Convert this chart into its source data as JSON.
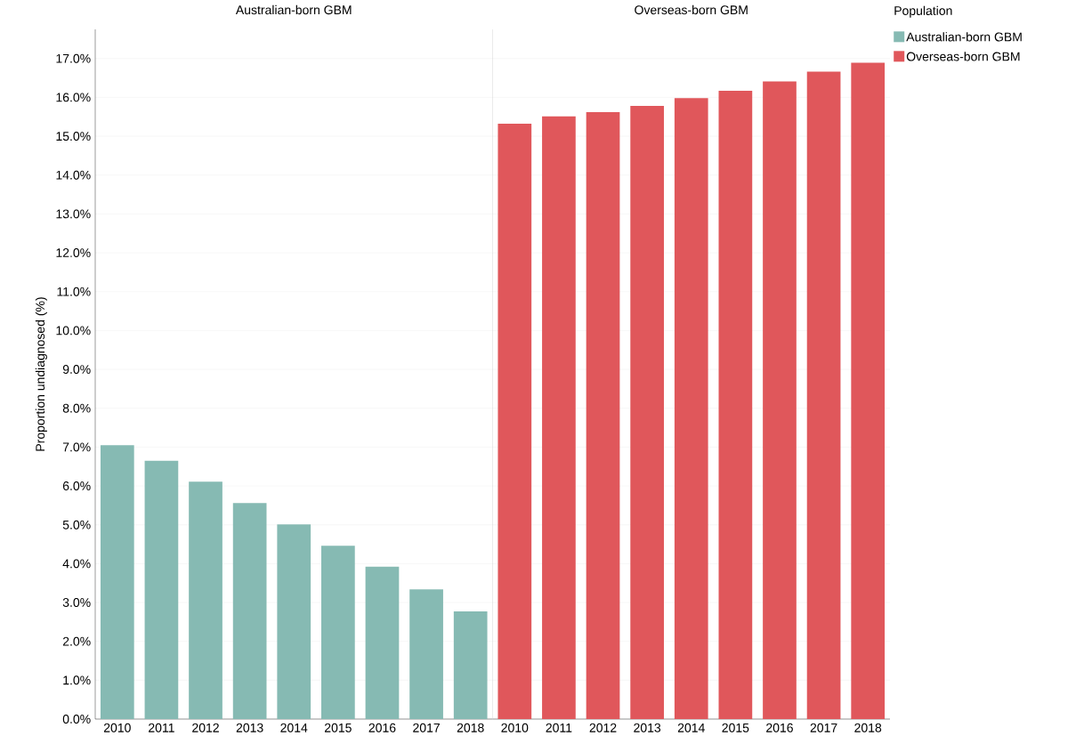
{
  "chart_data": [
    {
      "type": "bar",
      "title": "Australian-born GBM",
      "legend": "top right",
      "ylabel": "Proportion undiagnosed (%)",
      "categories": [
        "2010",
        "2011",
        "2012",
        "2013",
        "2014",
        "2015",
        "2016",
        "2017",
        "2018"
      ],
      "series": [
        {
          "name": "Australian-born GBM",
          "color": "#86bab3",
          "values": [
            7.05,
            6.65,
            6.11,
            5.56,
            5.01,
            4.46,
            3.92,
            3.34,
            2.77
          ]
        }
      ],
      "ylim": [
        0,
        17.75
      ],
      "yticks": [
        {
          "value": 0,
          "label": "0.0%"
        },
        {
          "value": 1,
          "label": "1.0%"
        },
        {
          "value": 2,
          "label": "2.0%"
        },
        {
          "value": 3,
          "label": "3.0%"
        },
        {
          "value": 4,
          "label": "4.0%"
        },
        {
          "value": 5,
          "label": "5.0%"
        },
        {
          "value": 6,
          "label": "6.0%"
        },
        {
          "value": 7,
          "label": "7.0%"
        },
        {
          "value": 8,
          "label": "8.0%"
        },
        {
          "value": 9,
          "label": "9.0%"
        },
        {
          "value": 10,
          "label": "10.0%"
        },
        {
          "value": 11,
          "label": "11.0%"
        },
        {
          "value": 12,
          "label": "12.0%"
        },
        {
          "value": 13,
          "label": "13.0%"
        },
        {
          "value": 14,
          "label": "14.0%"
        },
        {
          "value": 15,
          "label": "15.0%"
        },
        {
          "value": 16,
          "label": "16.0%"
        },
        {
          "value": 17,
          "label": "17.0%"
        }
      ],
      "grid": "y"
    },
    {
      "type": "bar",
      "title": "Overseas-born GBM",
      "legend_title": "Population",
      "legend": "top right",
      "categories": [
        "2010",
        "2011",
        "2012",
        "2013",
        "2014",
        "2015",
        "2016",
        "2017",
        "2018"
      ],
      "series": [
        {
          "name": "Overseas-born GBM",
          "color": "#e0575b",
          "values": [
            15.32,
            15.51,
            15.62,
            15.78,
            15.98,
            16.17,
            16.41,
            16.66,
            16.89
          ]
        }
      ],
      "ylim": [
        0,
        17.75
      ],
      "yticks": [
        {
          "value": 0,
          "label": null
        },
        {
          "value": 1,
          "label": null
        },
        {
          "value": 2,
          "label": null
        },
        {
          "value": 3,
          "label": null
        },
        {
          "value": 4,
          "label": null
        },
        {
          "value": 5,
          "label": null
        },
        {
          "value": 6,
          "label": null
        },
        {
          "value": 7,
          "label": null
        },
        {
          "value": 8,
          "label": null
        },
        {
          "value": 9,
          "label": null
        },
        {
          "value": 10,
          "label": null
        },
        {
          "value": 11,
          "label": null
        },
        {
          "value": 12,
          "label": null
        },
        {
          "value": 13,
          "label": null
        },
        {
          "value": 14,
          "label": null
        },
        {
          "value": 15,
          "label": null
        },
        {
          "value": 16,
          "label": null
        },
        {
          "value": 17,
          "label": null
        }
      ],
      "tick_labels": "x",
      "grid": "y"
    }
  ]
}
